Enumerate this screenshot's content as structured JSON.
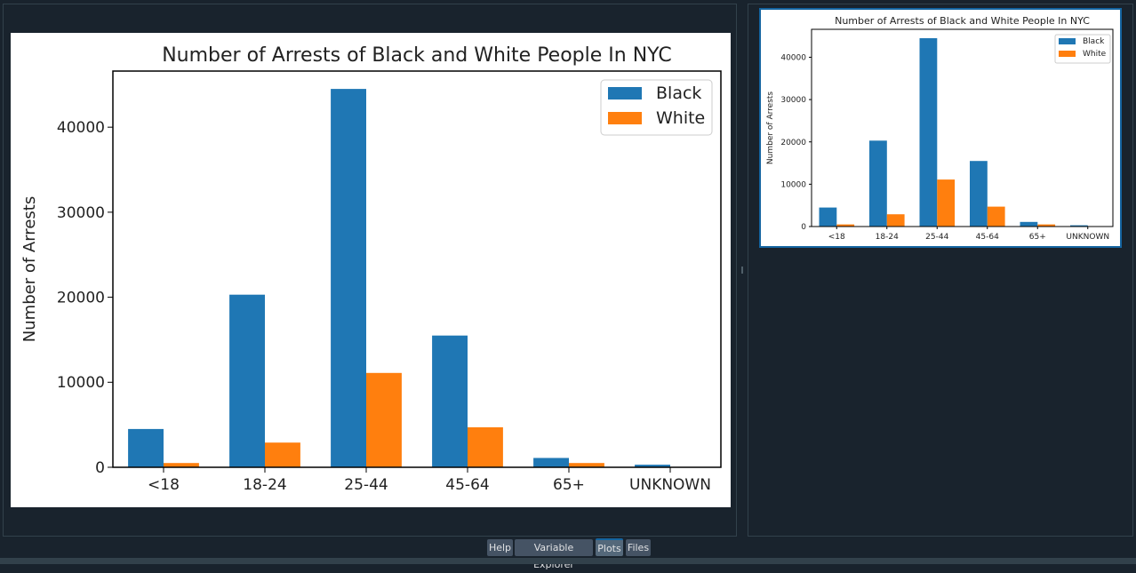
{
  "tabs": [
    {
      "label": "Help",
      "active": false
    },
    {
      "label": "Variable Explorer",
      "active": false
    },
    {
      "label": "Plots",
      "active": true
    },
    {
      "label": "Files",
      "active": false
    }
  ],
  "colors": {
    "black_series": "#1f77b4",
    "white_series": "#ff7f0e",
    "accent": "#1464a0"
  },
  "chart_data": [
    {
      "type": "bar",
      "title": "Number of Arrests of Black and White People In NYC",
      "xlabel": "",
      "ylabel": "Number of Arrests",
      "categories": [
        "<18",
        "18-24",
        "25-44",
        "45-64",
        "65+",
        "UNKNOWN"
      ],
      "series": [
        {
          "name": "Black",
          "values": [
            4500,
            20300,
            44500,
            15500,
            1100,
            300
          ]
        },
        {
          "name": "White",
          "values": [
            500,
            2900,
            11100,
            4700,
            500,
            50
          ]
        }
      ],
      "ylim": [
        0,
        46600
      ],
      "yticks": [
        "0",
        "10000",
        "20000",
        "30000",
        "40000"
      ],
      "legend": "top-right",
      "grid": false
    }
  ]
}
